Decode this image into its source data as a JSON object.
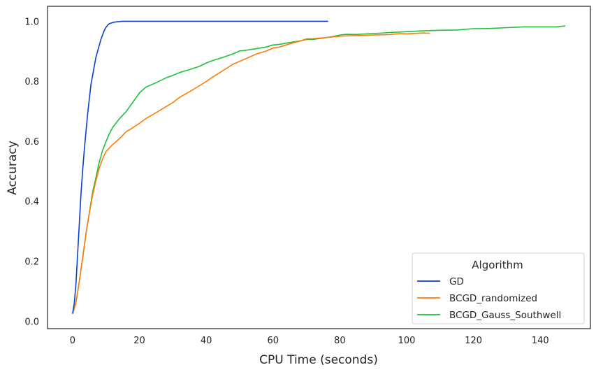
{
  "chart_data": {
    "type": "line",
    "title": "",
    "xlabel": "CPU Time (seconds)",
    "ylabel": "Accuracy",
    "xlim": [
      -7.5,
      155
    ],
    "ylim": [
      -0.025,
      1.05
    ],
    "xticks": [
      0,
      20,
      40,
      60,
      80,
      100,
      120,
      140
    ],
    "yticks": [
      0.0,
      0.2,
      0.4,
      0.6,
      0.8,
      1.0
    ],
    "grid": false,
    "legend": {
      "title": "Algorithm",
      "position": "lower-right"
    },
    "series": [
      {
        "name": "GD",
        "color": "#0a3fd8",
        "x": [
          0,
          0.5,
          1,
          1.5,
          2,
          2.5,
          3,
          3.5,
          4,
          4.5,
          5,
          5.5,
          6,
          6.5,
          7,
          7.5,
          8,
          8.5,
          9,
          9.5,
          10,
          10.5,
          11,
          12,
          13,
          14,
          15,
          20,
          30,
          40,
          50,
          60,
          70,
          76.5
        ],
        "y": [
          0.025,
          0.06,
          0.12,
          0.22,
          0.32,
          0.42,
          0.5,
          0.57,
          0.63,
          0.69,
          0.74,
          0.79,
          0.82,
          0.85,
          0.88,
          0.9,
          0.92,
          0.94,
          0.955,
          0.97,
          0.98,
          0.987,
          0.992,
          0.996,
          0.998,
          0.999,
          1.0,
          1.0,
          1.0,
          1.0,
          1.0,
          1.0,
          1.0,
          1.0
        ]
      },
      {
        "name": "BCGD_randomized",
        "color": "#ff7c0a",
        "x": [
          0,
          1,
          2,
          3,
          4,
          5,
          6,
          7,
          8,
          9,
          10,
          12,
          14,
          16,
          18,
          20,
          22,
          25,
          28,
          30,
          32,
          35,
          38,
          40,
          42,
          45,
          48,
          50,
          52,
          55,
          58,
          60,
          62,
          65,
          68,
          70,
          72,
          75,
          78,
          80,
          82,
          85,
          88,
          90,
          92,
          95,
          98,
          100,
          102,
          105,
          107
        ],
        "y": [
          0.025,
          0.06,
          0.13,
          0.21,
          0.29,
          0.36,
          0.42,
          0.47,
          0.51,
          0.54,
          0.565,
          0.59,
          0.61,
          0.63,
          0.645,
          0.66,
          0.675,
          0.695,
          0.715,
          0.73,
          0.745,
          0.765,
          0.785,
          0.8,
          0.815,
          0.835,
          0.855,
          0.865,
          0.875,
          0.89,
          0.9,
          0.91,
          0.915,
          0.925,
          0.935,
          0.94,
          0.942,
          0.945,
          0.948,
          0.95,
          0.952,
          0.953,
          0.954,
          0.955,
          0.956,
          0.957,
          0.958,
          0.958,
          0.959,
          0.96,
          0.96
        ]
      },
      {
        "name": "BCGD_Gauss_Southwell",
        "color": "#1fc13a",
        "x": [
          0,
          1,
          2,
          3,
          4,
          5,
          6,
          7,
          8,
          9,
          10,
          11,
          12,
          14,
          16,
          18,
          20,
          22,
          25,
          28,
          30,
          32,
          35,
          38,
          40,
          42,
          45,
          48,
          50,
          52,
          55,
          58,
          60,
          62,
          65,
          68,
          70,
          72,
          75,
          78,
          80,
          82,
          85,
          88,
          90,
          95,
          100,
          105,
          110,
          115,
          120,
          125,
          130,
          135,
          140,
          145,
          147.5
        ],
        "y": [
          0.025,
          0.06,
          0.13,
          0.21,
          0.29,
          0.36,
          0.43,
          0.48,
          0.53,
          0.57,
          0.6,
          0.625,
          0.645,
          0.675,
          0.7,
          0.73,
          0.76,
          0.78,
          0.795,
          0.81,
          0.82,
          0.83,
          0.84,
          0.85,
          0.86,
          0.87,
          0.88,
          0.89,
          0.9,
          0.905,
          0.91,
          0.915,
          0.92,
          0.925,
          0.93,
          0.935,
          0.94,
          0.94,
          0.945,
          0.95,
          0.955,
          0.955,
          0.955,
          0.958,
          0.96,
          0.963,
          0.965,
          0.968,
          0.97,
          0.972,
          0.975,
          0.975,
          0.978,
          0.98,
          0.98,
          0.983,
          0.985
        ]
      }
    ]
  }
}
